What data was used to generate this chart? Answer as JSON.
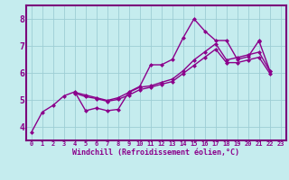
{
  "xlabel": "Windchill (Refroidissement éolien,°C)",
  "xlim": [
    -0.5,
    23.5
  ],
  "ylim": [
    3.5,
    8.5
  ],
  "yticks": [
    4,
    5,
    6,
    7,
    8
  ],
  "xticks": [
    0,
    1,
    2,
    3,
    4,
    5,
    6,
    7,
    8,
    9,
    10,
    11,
    12,
    13,
    14,
    15,
    16,
    17,
    18,
    19,
    20,
    21,
    22,
    23
  ],
  "bg_color": "#c5ecee",
  "line_color": "#8b008b",
  "grid_color": "#9dcdd4",
  "series": [
    [
      3.8,
      4.55,
      4.8,
      5.15,
      5.3,
      4.6,
      4.7,
      4.6,
      4.65,
      5.3,
      5.5,
      6.3,
      6.3,
      6.5,
      7.3,
      8.0,
      7.55,
      7.2,
      7.2,
      6.5,
      6.6,
      7.2,
      null,
      null
    ],
    [
      null,
      null,
      null,
      null,
      5.28,
      5.18,
      5.08,
      4.98,
      5.08,
      5.28,
      5.47,
      5.52,
      5.65,
      5.77,
      6.08,
      6.48,
      6.78,
      7.08,
      6.48,
      6.57,
      6.67,
      6.77,
      6.07,
      null
    ],
    [
      null,
      null,
      null,
      null,
      5.25,
      5.12,
      5.05,
      4.95,
      5.02,
      5.18,
      5.38,
      5.47,
      5.58,
      5.68,
      5.98,
      6.28,
      6.58,
      6.88,
      6.38,
      6.38,
      6.48,
      6.58,
      5.98,
      null
    ],
    [
      null,
      null,
      null,
      null,
      null,
      null,
      null,
      null,
      null,
      null,
      null,
      null,
      null,
      null,
      null,
      null,
      null,
      null,
      null,
      null,
      null,
      7.18,
      6.08,
      null
    ]
  ],
  "line_width": 1.0,
  "marker_size": 2.5,
  "border_color": "#7a007a",
  "border_lw": 1.5
}
